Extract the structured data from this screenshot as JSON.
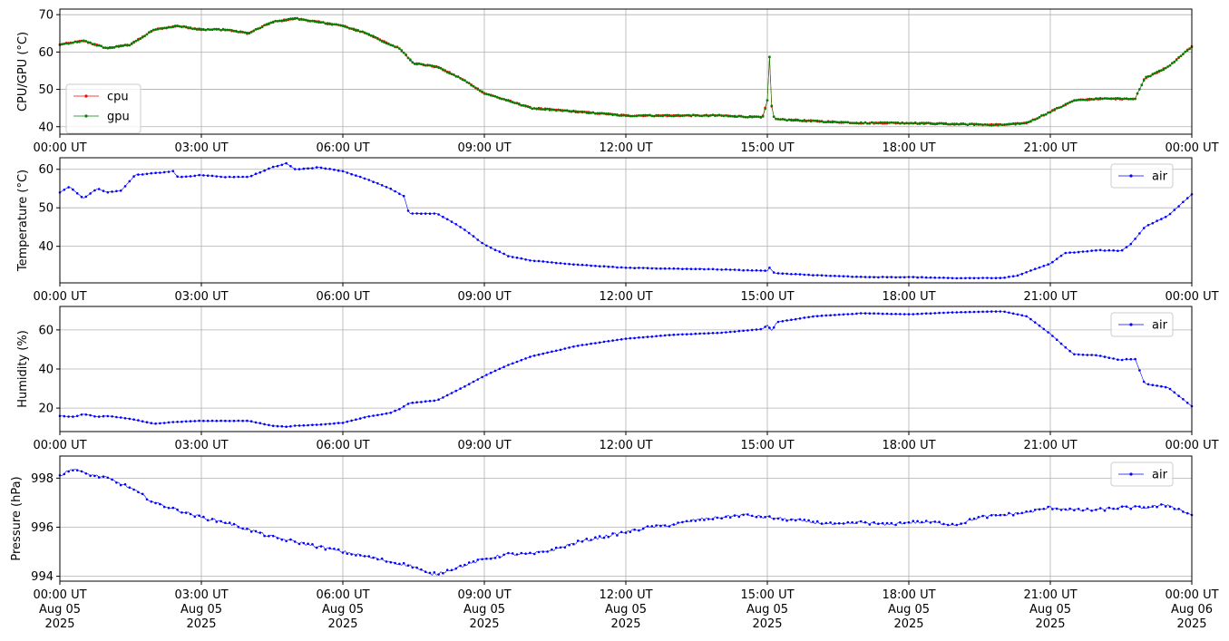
{
  "chart_data": [
    {
      "type": "line",
      "ylabel": "CPU/GPU (°C)",
      "xlabel": "",
      "ylim": [
        38,
        71.5
      ],
      "yticks": [
        40,
        50,
        60,
        70
      ],
      "xlim_hours": [
        0,
        24
      ],
      "grid": true,
      "legend": "center-left",
      "x_hours": [
        0,
        0.5,
        1,
        1.5,
        2,
        2.5,
        3,
        3.5,
        4,
        4.5,
        5,
        5.5,
        6,
        6.5,
        7,
        7.2,
        7.5,
        8,
        8.5,
        9,
        9.5,
        10,
        10.5,
        11,
        12,
        13,
        14,
        14.9,
        15.0,
        15.05,
        15.1,
        15.2,
        16,
        17,
        18,
        19,
        20,
        20.5,
        21,
        21.5,
        22,
        22.5,
        22.8,
        23,
        23.5,
        24
      ],
      "series": [
        {
          "name": "cpu",
          "color": "#ff0000",
          "values": [
            62,
            63,
            61,
            62,
            66,
            67,
            66,
            66,
            65,
            68,
            69,
            68,
            67,
            65,
            62,
            61,
            57,
            56,
            53,
            49,
            47,
            45,
            44.5,
            44,
            43,
            43,
            43,
            42.5,
            47,
            59.5,
            43,
            42,
            41.5,
            41,
            41,
            40.7,
            40.5,
            41,
            44,
            47,
            47.5,
            47.5,
            47.5,
            53,
            56,
            61.5
          ]
        },
        {
          "name": "gpu",
          "color": "#008000",
          "values": [
            62,
            63,
            61,
            62,
            66,
            67,
            66,
            66,
            65,
            68,
            69,
            68,
            67,
            65,
            62,
            61,
            57,
            56,
            53,
            49,
            47,
            45,
            44.5,
            44,
            43,
            43,
            43,
            42.5,
            47,
            59.5,
            43,
            42,
            41.5,
            41,
            41,
            40.7,
            40.5,
            41,
            44,
            47,
            47.5,
            47.5,
            47.5,
            53,
            56,
            61.5
          ]
        }
      ]
    },
    {
      "type": "line",
      "ylabel": "Temperature (°C)",
      "xlabel": "",
      "ylim": [
        30.5,
        63
      ],
      "yticks": [
        40,
        50,
        60
      ],
      "xlim_hours": [
        0,
        24
      ],
      "grid": true,
      "legend": "top-right",
      "x_hours": [
        0,
        0.2,
        0.5,
        0.8,
        1,
        1.3,
        1.6,
        2,
        2.4,
        2.5,
        2.6,
        3,
        3.5,
        4,
        4.5,
        4.8,
        5,
        5.5,
        6,
        6.5,
        7,
        7.3,
        7.4,
        7.6,
        8,
        8.5,
        9,
        9.5,
        10,
        11,
        12,
        13,
        14,
        15,
        15.05,
        15.15,
        16,
        17,
        18,
        19,
        20,
        20.3,
        21,
        21.3,
        21.5,
        22,
        22.5,
        22.7,
        23,
        23.5,
        24
      ],
      "series": [
        {
          "name": "air",
          "color": "#0000ff",
          "values": [
            54,
            55.5,
            52.5,
            55,
            54,
            54.5,
            58.5,
            59,
            59.5,
            58,
            58,
            58.5,
            58,
            58,
            60.5,
            61.5,
            60,
            60.5,
            59.5,
            57.5,
            55,
            53,
            48.5,
            48.5,
            48.5,
            45,
            40.5,
            37.5,
            36.3,
            35.2,
            34.4,
            34.2,
            34.0,
            33.6,
            34.5,
            33.0,
            32.5,
            32.0,
            32.0,
            31.7,
            31.8,
            32.4,
            35.5,
            38.2,
            38.4,
            39.0,
            38.8,
            40.5,
            45,
            48,
            53.5
          ]
        }
      ]
    },
    {
      "type": "line",
      "ylabel": "Humidity (%)",
      "xlabel": "",
      "ylim": [
        8,
        72
      ],
      "yticks": [
        20,
        40,
        60
      ],
      "xlim_hours": [
        0,
        24
      ],
      "grid": true,
      "legend": "top-right",
      "x_hours": [
        0,
        0.3,
        0.5,
        0.8,
        1,
        1.5,
        2,
        2.5,
        3,
        3.5,
        4,
        4.5,
        4.8,
        5,
        5.5,
        6,
        6.5,
        7,
        7.2,
        7.4,
        8,
        8.5,
        9,
        9.5,
        10,
        11,
        12,
        13,
        14,
        14.9,
        15.0,
        15.1,
        15.2,
        16,
        17,
        18,
        19,
        20,
        20.5,
        21,
        21.3,
        21.5,
        22,
        22.5,
        22.6,
        22.8,
        23,
        23.5,
        24
      ],
      "series": [
        {
          "name": "air",
          "color": "#0000ff",
          "values": [
            16,
            15.5,
            17,
            15.5,
            16,
            14.5,
            12,
            13,
            13.5,
            13.5,
            13.5,
            11,
            10.5,
            11,
            11.5,
            12.5,
            15.5,
            17.5,
            19.5,
            22.5,
            24,
            30,
            36.5,
            42,
            46.5,
            52,
            55.5,
            57.5,
            58.5,
            60.5,
            62.5,
            59.5,
            64,
            67,
            68.5,
            68,
            69,
            69.5,
            67,
            58,
            51.5,
            47.5,
            47,
            44.5,
            45,
            45,
            32.5,
            30.5,
            21
          ]
        }
      ]
    },
    {
      "type": "line",
      "ylabel": "Pressure (hPa)",
      "xlabel": "",
      "ylim": [
        993.8,
        998.9
      ],
      "yticks": [
        994,
        996,
        998
      ],
      "xlim_hours": [
        0,
        24
      ],
      "grid": true,
      "legend": "top-right",
      "x_hours": [
        0,
        0.3,
        0.5,
        1,
        1.5,
        2,
        2.5,
        3,
        3.5,
        4,
        4.5,
        5,
        5.5,
        6,
        6.5,
        7,
        7.5,
        7.8,
        8,
        8.5,
        9,
        9.5,
        10,
        10.5,
        11,
        11.5,
        12,
        12.5,
        13,
        13.5,
        14,
        14.5,
        15,
        15.5,
        16,
        16.5,
        17,
        17.5,
        18,
        18.5,
        19,
        19.5,
        20,
        20.5,
        21,
        21.5,
        22,
        22.5,
        23,
        23.5,
        24
      ],
      "series": [
        {
          "name": "air",
          "color": "#0000ff",
          "values": [
            998.1,
            998.4,
            998.2,
            998.0,
            997.6,
            997.0,
            996.7,
            996.4,
            996.2,
            995.9,
            995.6,
            995.4,
            995.2,
            995.0,
            994.8,
            994.6,
            994.4,
            994.1,
            994.1,
            994.4,
            994.7,
            994.9,
            994.9,
            995.1,
            995.4,
            995.6,
            995.8,
            996.0,
            996.1,
            996.3,
            996.4,
            996.5,
            996.4,
            996.3,
            996.2,
            996.1,
            996.2,
            996.1,
            996.2,
            996.2,
            996.1,
            996.4,
            996.5,
            996.6,
            996.8,
            996.7,
            996.7,
            996.8,
            996.8,
            996.9,
            996.5
          ]
        }
      ]
    }
  ],
  "x_tick_labels": [
    "00:00 UT",
    "03:00 UT",
    "06:00 UT",
    "09:00 UT",
    "12:00 UT",
    "15:00 UT",
    "18:00 UT",
    "21:00 UT",
    "00:00 UT"
  ],
  "x_tick_dates": [
    [
      "Aug 05",
      "2025"
    ],
    [
      "Aug 05",
      "2025"
    ],
    [
      "Aug 05",
      "2025"
    ],
    [
      "Aug 05",
      "2025"
    ],
    [
      "Aug 05",
      "2025"
    ],
    [
      "Aug 05",
      "2025"
    ],
    [
      "Aug 05",
      "2025"
    ],
    [
      "Aug 05",
      "2025"
    ],
    [
      "Aug 06",
      "2025"
    ]
  ],
  "colors": {
    "grid": "#b0b0b0",
    "axis": "#000000",
    "legend_border": "#cccccc"
  }
}
